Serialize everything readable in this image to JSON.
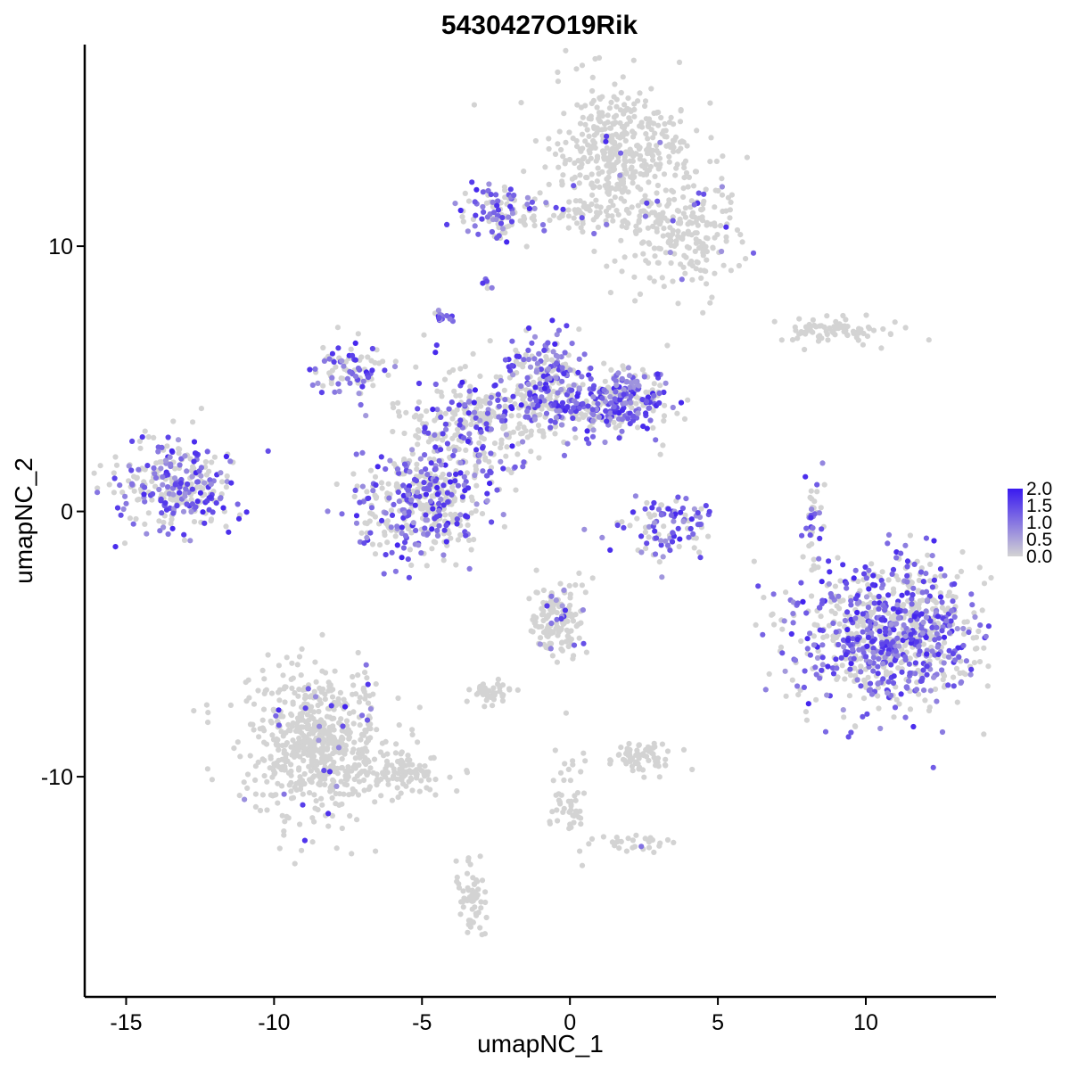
{
  "chart_data": {
    "type": "scatter",
    "title": "5430427O19Rik",
    "xlabel": "umapNC_1",
    "ylabel": "umapNC_2",
    "xlim": [
      -16.4,
      14.4
    ],
    "ylim": [
      -18.3,
      17.6
    ],
    "x_ticks": [
      -15,
      -10,
      -5,
      0,
      5,
      10
    ],
    "y_ticks": [
      -10,
      0,
      10
    ],
    "x_tick_labels": [
      "-15",
      "-10",
      "-5",
      "0",
      "5",
      "10"
    ],
    "y_tick_labels": [
      "-10",
      "0",
      "10"
    ],
    "grid": false,
    "legend": {
      "placement": "right",
      "type": "colorbar",
      "min": 0.0,
      "max": 2.0,
      "ticks": [
        2.0,
        1.5,
        1.0,
        0.5,
        0.0
      ],
      "tick_labels": [
        "2.0",
        "1.5",
        "1.0",
        "0.5",
        "0.0"
      ],
      "low_color": "#d3d3d3",
      "high_color": "#3a1af0"
    },
    "base_point_color": "#d3d3d3",
    "clusters": [
      {
        "cx": 1.8,
        "cy": 13.5,
        "sx": 1.2,
        "sy": 1.3,
        "n": 420,
        "expr_frac": 0.03
      },
      {
        "cx": 3.8,
        "cy": 10.5,
        "sx": 1.0,
        "sy": 1.1,
        "n": 220,
        "expr_frac": 0.05
      },
      {
        "cx": -2.2,
        "cy": 11.3,
        "sx": 0.8,
        "sy": 0.5,
        "n": 110,
        "expr_frac": 0.55
      },
      {
        "cx": 0.6,
        "cy": 11.2,
        "sx": 1.0,
        "sy": 0.25,
        "n": 50,
        "expr_frac": 0.05
      },
      {
        "cx": -13.3,
        "cy": 1.0,
        "sx": 1.0,
        "sy": 0.9,
        "n": 300,
        "expr_frac": 0.5
      },
      {
        "cx": -7.5,
        "cy": 5.5,
        "sx": 0.6,
        "sy": 0.5,
        "n": 90,
        "expr_frac": 0.45
      },
      {
        "cx": -5.0,
        "cy": 0.3,
        "sx": 1.1,
        "sy": 1.0,
        "n": 400,
        "expr_frac": 0.48
      },
      {
        "cx": -3.2,
        "cy": 3.4,
        "sx": 1.2,
        "sy": 1.0,
        "n": 300,
        "expr_frac": 0.3
      },
      {
        "cx": -0.8,
        "cy": 4.9,
        "sx": 0.7,
        "sy": 0.9,
        "n": 220,
        "expr_frac": 0.6
      },
      {
        "cx": 1.9,
        "cy": 4.2,
        "sx": 0.7,
        "sy": 0.6,
        "n": 200,
        "expr_frac": 0.6
      },
      {
        "cx": 0.3,
        "cy": 3.8,
        "sx": 1.0,
        "sy": 0.4,
        "n": 120,
        "expr_frac": 0.45
      },
      {
        "cx": 3.3,
        "cy": -0.5,
        "sx": 0.8,
        "sy": 0.6,
        "n": 110,
        "expr_frac": 0.6
      },
      {
        "cx": 10.8,
        "cy": -4.6,
        "sx": 1.6,
        "sy": 1.4,
        "n": 900,
        "expr_frac": 0.5
      },
      {
        "cx": 9.1,
        "cy": 6.8,
        "sx": 1.1,
        "sy": 0.25,
        "n": 80,
        "expr_frac": 0.02
      },
      {
        "cx": 8.2,
        "cy": -0.5,
        "sx": 0.2,
        "sy": 0.9,
        "n": 40,
        "expr_frac": 0.4
      },
      {
        "cx": -8.6,
        "cy": -8.8,
        "sx": 1.2,
        "sy": 1.4,
        "n": 650,
        "expr_frac": 0.03
      },
      {
        "cx": -5.5,
        "cy": -9.8,
        "sx": 0.8,
        "sy": 0.4,
        "n": 90,
        "expr_frac": 0.01
      },
      {
        "cx": -3.3,
        "cy": -14.6,
        "sx": 0.25,
        "sy": 0.7,
        "n": 60,
        "expr_frac": 0.0
      },
      {
        "cx": -0.4,
        "cy": -4.0,
        "sx": 0.5,
        "sy": 0.7,
        "n": 150,
        "expr_frac": 0.06
      },
      {
        "cx": -2.6,
        "cy": -6.8,
        "sx": 0.4,
        "sy": 0.2,
        "n": 40,
        "expr_frac": 0.0
      },
      {
        "cx": 2.3,
        "cy": -9.3,
        "sx": 0.6,
        "sy": 0.3,
        "n": 70,
        "expr_frac": 0.01
      },
      {
        "cx": 0.0,
        "cy": -11.0,
        "sx": 0.3,
        "sy": 0.9,
        "n": 50,
        "expr_frac": 0.0
      },
      {
        "cx": 2.2,
        "cy": -12.5,
        "sx": 0.6,
        "sy": 0.2,
        "n": 30,
        "expr_frac": 0.03
      },
      {
        "cx": -4.3,
        "cy": 7.3,
        "sx": 0.15,
        "sy": 0.15,
        "n": 15,
        "expr_frac": 0.9
      },
      {
        "cx": -2.8,
        "cy": 8.6,
        "sx": 0.1,
        "sy": 0.1,
        "n": 6,
        "expr_frac": 0.7
      }
    ]
  }
}
